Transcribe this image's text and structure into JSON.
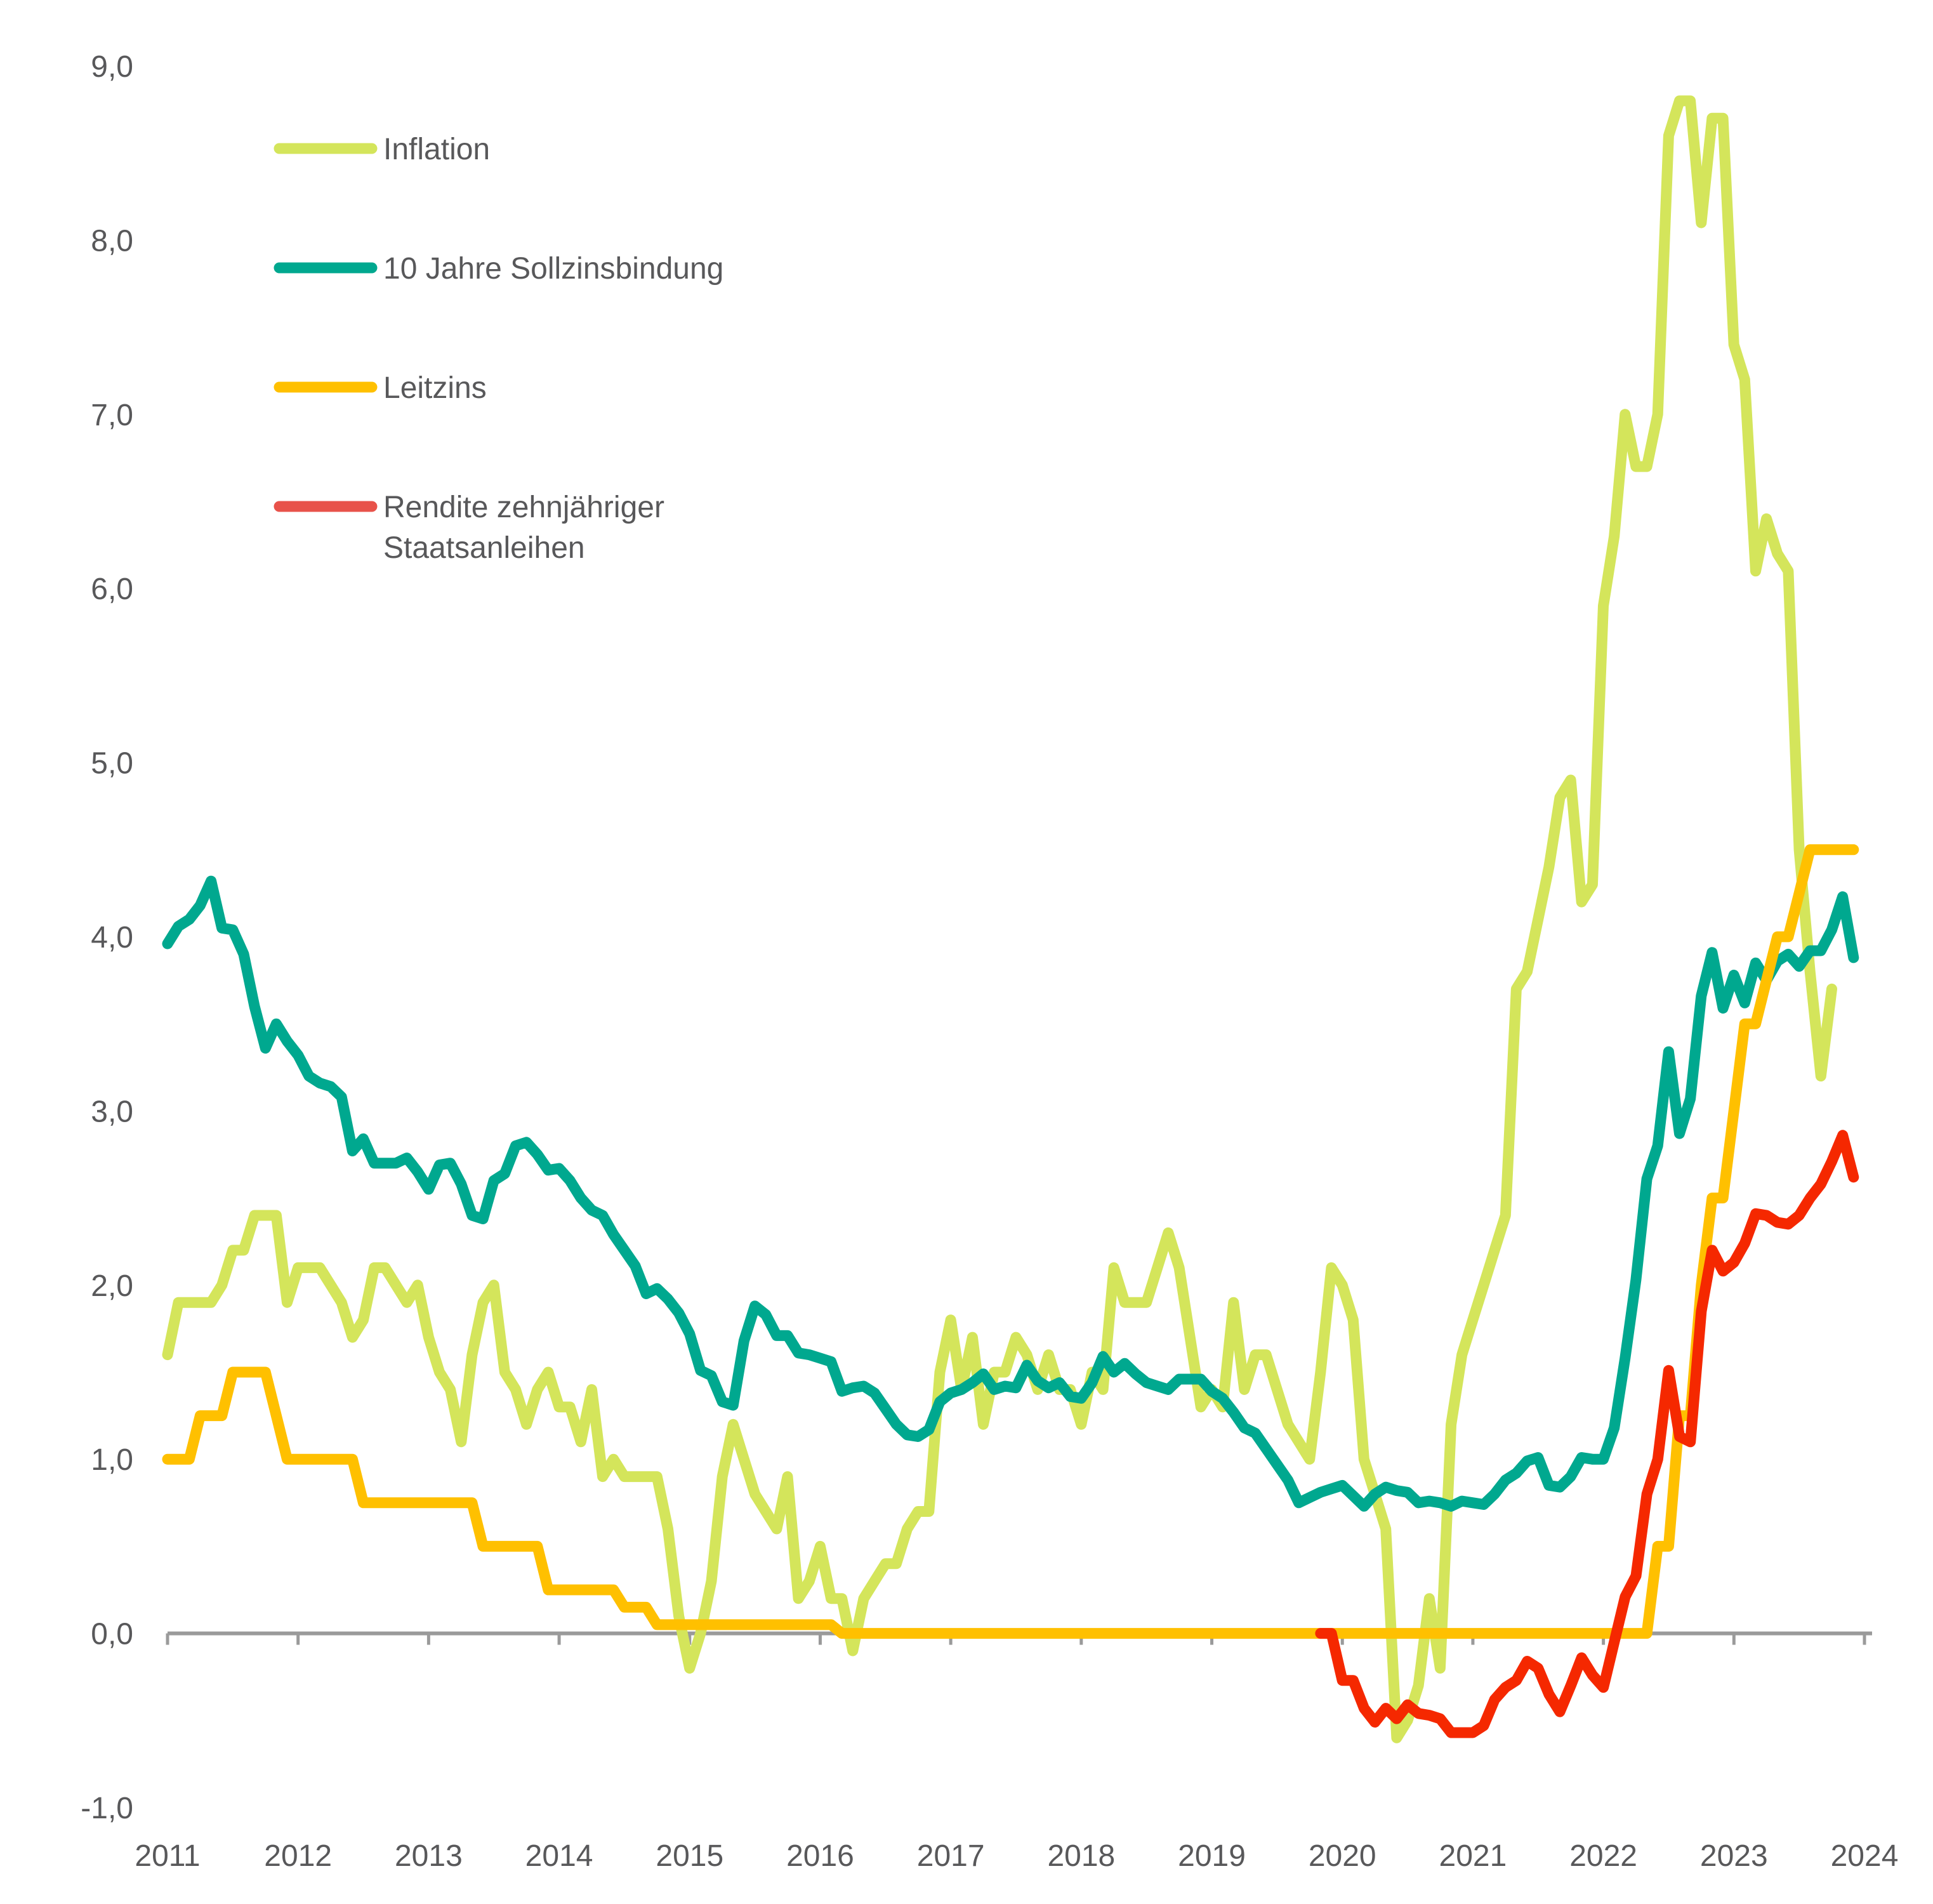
{
  "chart_data": {
    "type": "line",
    "title": "",
    "xlabel": "",
    "ylabel": "",
    "ylim": [
      -1.0,
      9.0
    ],
    "xlim": [
      2011,
      2024
    ],
    "grid": false,
    "legend_position": "top-left",
    "y_ticks": [
      "9,0",
      "8,0",
      "7,0",
      "6,0",
      "5,0",
      "4,0",
      "3,0",
      "2,0",
      "1,0",
      "0,0",
      "-1,0"
    ],
    "y_tick_values": [
      9,
      8,
      7,
      6,
      5,
      4,
      3,
      2,
      1,
      0,
      -1
    ],
    "x_ticks": [
      "2011",
      "2012",
      "2013",
      "2014",
      "2015",
      "2016",
      "2017",
      "2018",
      "2019",
      "2020",
      "2021",
      "2022",
      "2023",
      "2024"
    ],
    "x_tick_values": [
      2011,
      2012,
      2013,
      2014,
      2015,
      2016,
      2017,
      2018,
      2019,
      2020,
      2021,
      2022,
      2023,
      2024
    ],
    "series": [
      {
        "name": "Inflation",
        "color": "#d4e55b",
        "start": 2011.0,
        "step": 0.08333,
        "values": [
          1.6,
          1.9,
          1.9,
          1.9,
          1.9,
          2.0,
          2.2,
          2.2,
          2.4,
          2.4,
          2.4,
          1.9,
          2.1,
          2.1,
          2.1,
          2.0,
          1.9,
          1.7,
          1.8,
          2.1,
          2.1,
          2.0,
          1.9,
          2.0,
          1.7,
          1.5,
          1.4,
          1.1,
          1.6,
          1.9,
          2.0,
          1.5,
          1.4,
          1.2,
          1.4,
          1.5,
          1.3,
          1.3,
          1.1,
          1.4,
          0.9,
          1.0,
          0.9,
          0.9,
          0.9,
          0.9,
          0.6,
          0.1,
          -0.2,
          0.0,
          0.3,
          0.9,
          1.2,
          1.0,
          0.8,
          0.7,
          0.6,
          0.9,
          0.2,
          0.3,
          0.5,
          0.2,
          0.2,
          -0.1,
          0.2,
          0.3,
          0.4,
          0.4,
          0.6,
          0.7,
          0.7,
          1.5,
          1.8,
          1.4,
          1.7,
          1.2,
          1.5,
          1.5,
          1.7,
          1.6,
          1.4,
          1.6,
          1.4,
          1.4,
          1.2,
          1.5,
          1.4,
          2.1,
          1.9,
          1.9,
          1.9,
          2.1,
          2.3,
          2.1,
          1.7,
          1.3,
          1.4,
          1.3,
          1.9,
          1.4,
          1.6,
          1.6,
          1.4,
          1.2,
          1.1,
          1.0,
          1.5,
          2.1,
          2.0,
          1.8,
          1.0,
          0.8,
          0.6,
          -0.6,
          -0.5,
          -0.3,
          0.2,
          -0.2,
          1.2,
          1.6,
          1.8,
          2.0,
          2.2,
          2.4,
          3.7,
          3.8,
          4.1,
          4.4,
          4.8,
          4.9,
          4.2,
          4.3,
          5.9,
          6.3,
          7.0,
          6.7,
          6.7,
          7.0,
          8.6,
          8.8,
          8.8,
          8.1,
          8.7,
          8.7,
          7.4,
          7.2,
          6.1,
          6.4,
          6.2,
          6.1,
          4.5,
          3.8,
          3.2,
          3.7
        ]
      },
      {
        "name": "10 Jahre Sollzinsbindung",
        "color": "#00a88f",
        "start": 2011.0,
        "step": 0.08333,
        "values": [
          3.96,
          4.06,
          4.1,
          4.18,
          4.32,
          4.05,
          4.04,
          3.9,
          3.6,
          3.36,
          3.5,
          3.4,
          3.32,
          3.2,
          3.16,
          3.14,
          3.08,
          2.77,
          2.84,
          2.7,
          2.7,
          2.7,
          2.73,
          2.65,
          2.55,
          2.69,
          2.7,
          2.58,
          2.4,
          2.38,
          2.6,
          2.64,
          2.8,
          2.82,
          2.75,
          2.66,
          2.67,
          2.6,
          2.5,
          2.43,
          2.4,
          2.29,
          2.2,
          2.11,
          1.95,
          1.98,
          1.92,
          1.84,
          1.72,
          1.51,
          1.48,
          1.33,
          1.31,
          1.68,
          1.88,
          1.83,
          1.71,
          1.71,
          1.61,
          1.6,
          1.58,
          1.56,
          1.39,
          1.41,
          1.42,
          1.38,
          1.29,
          1.2,
          1.14,
          1.13,
          1.17,
          1.33,
          1.38,
          1.4,
          1.44,
          1.49,
          1.4,
          1.42,
          1.41,
          1.54,
          1.45,
          1.41,
          1.44,
          1.36,
          1.35,
          1.44,
          1.59,
          1.5,
          1.55,
          1.49,
          1.44,
          1.42,
          1.4,
          1.46,
          1.46,
          1.46,
          1.39,
          1.35,
          1.27,
          1.18,
          1.15,
          1.06,
          0.97,
          0.88,
          0.75,
          0.78,
          0.81,
          0.83,
          0.85,
          0.79,
          0.73,
          0.8,
          0.84,
          0.82,
          0.81,
          0.75,
          0.76,
          0.75,
          0.73,
          0.76,
          0.75,
          0.74,
          0.8,
          0.88,
          0.92,
          0.99,
          1.01,
          0.85,
          0.84,
          0.9,
          1.01,
          1.0,
          1.0,
          1.18,
          1.58,
          2.03,
          2.61,
          2.8,
          3.34,
          2.87,
          3.07,
          3.66,
          3.91,
          3.59,
          3.78,
          3.62,
          3.85,
          3.75,
          3.86,
          3.9,
          3.83,
          3.92,
          3.92,
          4.04,
          4.23,
          3.88
        ]
      },
      {
        "name": "Leitzins",
        "color": "#ffc000",
        "start": 2011.0,
        "step": 0.08333,
        "values": [
          1.0,
          1.0,
          1.0,
          1.25,
          1.25,
          1.25,
          1.5,
          1.5,
          1.5,
          1.5,
          1.25,
          1.0,
          1.0,
          1.0,
          1.0,
          1.0,
          1.0,
          1.0,
          0.75,
          0.75,
          0.75,
          0.75,
          0.75,
          0.75,
          0.75,
          0.75,
          0.75,
          0.75,
          0.75,
          0.5,
          0.5,
          0.5,
          0.5,
          0.5,
          0.5,
          0.25,
          0.25,
          0.25,
          0.25,
          0.25,
          0.25,
          0.25,
          0.15,
          0.15,
          0.15,
          0.05,
          0.05,
          0.05,
          0.05,
          0.05,
          0.05,
          0.05,
          0.05,
          0.05,
          0.05,
          0.05,
          0.05,
          0.05,
          0.05,
          0.05,
          0.05,
          0.05,
          0.0,
          0.0,
          0.0,
          0.0,
          0.0,
          0.0,
          0.0,
          0.0,
          0.0,
          0.0,
          0.0,
          0.0,
          0.0,
          0.0,
          0.0,
          0.0,
          0.0,
          0.0,
          0.0,
          0.0,
          0.0,
          0.0,
          0.0,
          0.0,
          0.0,
          0.0,
          0.0,
          0.0,
          0.0,
          0.0,
          0.0,
          0.0,
          0.0,
          0.0,
          0.0,
          0.0,
          0.0,
          0.0,
          0.0,
          0.0,
          0.0,
          0.0,
          0.0,
          0.0,
          0.0,
          0.0,
          0.0,
          0.0,
          0.0,
          0.0,
          0.0,
          0.0,
          0.0,
          0.0,
          0.0,
          0.0,
          0.0,
          0.0,
          0.0,
          0.0,
          0.0,
          0.0,
          0.0,
          0.0,
          0.0,
          0.0,
          0.0,
          0.0,
          0.0,
          0.0,
          0.0,
          0.0,
          0.0,
          0.0,
          0.0,
          0.5,
          0.5,
          1.25,
          1.25,
          2.0,
          2.5,
          2.5,
          3.0,
          3.5,
          3.5,
          3.75,
          4.0,
          4.0,
          4.25,
          4.5,
          4.5,
          4.5,
          4.5,
          4.5
        ]
      },
      {
        "name": "Rendite zehnjähriger Staatsanleihen",
        "legend_name_lines": [
          "Rendite zehnjähriger",
          "Staatsanleihen"
        ],
        "color": "#f52800",
        "legend_color": "#e8524a",
        "start": 2019.8333,
        "step": 0.08333,
        "values": [
          0.0,
          0.0,
          -0.27,
          -0.27,
          -0.43,
          -0.51,
          -0.43,
          -0.49,
          -0.41,
          -0.46,
          -0.47,
          -0.49,
          -0.57,
          -0.57,
          -0.57,
          -0.53,
          -0.38,
          -0.31,
          -0.27,
          -0.16,
          -0.2,
          -0.35,
          -0.45,
          -0.3,
          -0.14,
          -0.24,
          -0.31,
          -0.05,
          0.21,
          0.33,
          0.8,
          1.0,
          1.51,
          1.13,
          1.1,
          1.85,
          2.2,
          2.08,
          2.13,
          2.24,
          2.41,
          2.4,
          2.36,
          2.35,
          2.4,
          2.5,
          2.58,
          2.71,
          2.86,
          2.62
        ]
      }
    ]
  }
}
